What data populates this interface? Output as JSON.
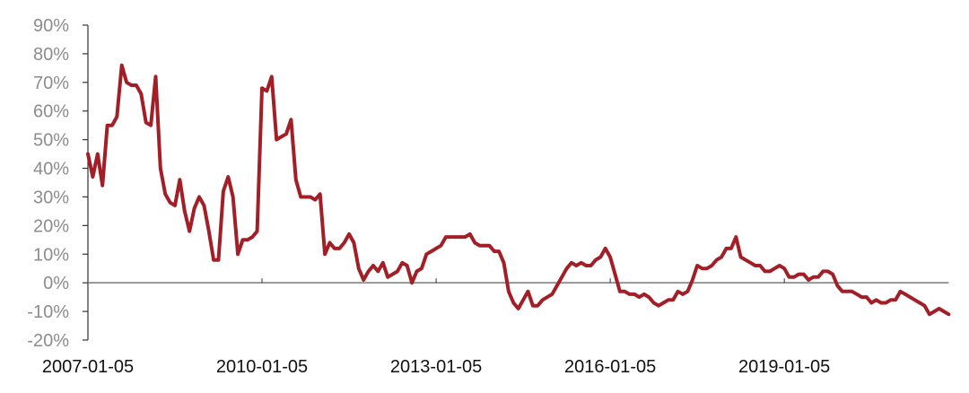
{
  "chart_data": {
    "type": "line",
    "title": "",
    "xlabel": "",
    "ylabel": "",
    "ylim": [
      -20,
      90
    ],
    "y_unit": "%",
    "y_ticks": [
      "90%",
      "80%",
      "70%",
      "60%",
      "50%",
      "40%",
      "30%",
      "20%",
      "10%",
      "0%",
      "-10%",
      "-20%"
    ],
    "x_ticks": [
      "2007-01-05",
      "2010-01-05",
      "2013-01-05",
      "2016-01-05",
      "2019-01-05"
    ],
    "grid": false,
    "legend": "none",
    "line_color": "#a31f28",
    "zero_line_color": "#7a7a7a",
    "x": [
      "2007-01",
      "2007-02",
      "2007-03",
      "2007-04",
      "2007-05",
      "2007-06",
      "2007-07",
      "2007-08",
      "2007-09",
      "2007-10",
      "2007-11",
      "2007-12",
      "2008-01",
      "2008-02",
      "2008-03",
      "2008-04",
      "2008-05",
      "2008-06",
      "2008-07",
      "2008-08",
      "2008-09",
      "2008-10",
      "2008-11",
      "2008-12",
      "2009-01",
      "2009-02",
      "2009-03",
      "2009-04",
      "2009-05",
      "2009-06",
      "2009-07",
      "2009-08",
      "2009-09",
      "2009-10",
      "2009-11",
      "2009-12",
      "2010-01",
      "2010-02",
      "2010-03",
      "2010-04",
      "2010-05",
      "2010-06",
      "2010-07",
      "2010-08",
      "2010-09",
      "2010-10",
      "2010-11",
      "2010-12",
      "2011-01",
      "2011-02",
      "2011-03",
      "2011-04",
      "2011-05",
      "2011-06",
      "2011-07",
      "2011-08",
      "2011-09",
      "2011-10",
      "2011-11",
      "2011-12",
      "2012-01",
      "2012-02",
      "2012-03",
      "2012-04",
      "2012-05",
      "2012-06",
      "2012-07",
      "2012-08",
      "2012-09",
      "2012-10",
      "2012-11",
      "2012-12",
      "2013-01",
      "2013-02",
      "2013-03",
      "2013-04",
      "2013-05",
      "2013-06",
      "2013-07",
      "2013-08",
      "2013-09",
      "2013-10",
      "2013-11",
      "2013-12",
      "2014-01",
      "2014-02",
      "2014-03",
      "2014-04",
      "2014-05",
      "2014-06",
      "2014-07",
      "2014-08",
      "2014-09",
      "2014-10",
      "2014-11",
      "2014-12",
      "2015-01",
      "2015-02",
      "2015-03",
      "2015-04",
      "2015-05",
      "2015-06",
      "2015-07",
      "2015-08",
      "2015-09",
      "2015-10",
      "2015-11",
      "2015-12",
      "2016-01",
      "2016-02",
      "2016-03",
      "2016-04",
      "2016-05",
      "2016-06",
      "2016-07",
      "2016-08",
      "2016-09",
      "2016-10",
      "2016-11",
      "2016-12",
      "2017-01",
      "2017-02",
      "2017-03",
      "2017-04",
      "2017-05",
      "2017-06",
      "2017-07",
      "2017-08",
      "2017-09",
      "2017-10",
      "2017-11",
      "2017-12",
      "2018-01",
      "2018-02",
      "2018-03",
      "2018-04",
      "2018-05",
      "2018-06",
      "2018-07",
      "2018-08",
      "2018-09",
      "2018-10",
      "2018-11",
      "2018-12",
      "2019-01",
      "2019-02",
      "2019-03",
      "2019-04",
      "2019-05",
      "2019-06",
      "2019-07",
      "2019-08",
      "2019-09",
      "2019-10",
      "2019-11",
      "2019-12",
      "2020-01",
      "2020-02",
      "2020-03",
      "2020-04",
      "2020-05",
      "2020-06",
      "2020-07",
      "2020-08",
      "2020-09",
      "2020-10",
      "2020-11",
      "2020-12",
      "2021-01",
      "2021-02",
      "2021-03",
      "2021-04",
      "2021-05",
      "2021-06",
      "2021-07",
      "2021-08",
      "2021-09",
      "2021-10",
      "2021-11"
    ],
    "values": [
      45,
      37,
      45,
      34,
      55,
      55,
      58,
      76,
      70,
      69,
      69,
      66,
      56,
      55,
      72,
      40,
      31,
      28,
      27,
      36,
      25,
      18,
      26,
      30,
      27,
      18,
      8,
      8,
      32,
      37,
      30,
      10,
      15,
      15,
      16,
      18,
      68,
      67,
      72,
      50,
      51,
      52,
      57,
      36,
      30,
      30,
      30,
      29,
      31,
      10,
      14,
      12,
      12,
      14,
      17,
      14,
      5,
      1,
      4,
      6,
      4,
      7,
      2,
      3,
      4,
      7,
      6,
      0,
      4,
      5,
      10,
      11,
      12,
      13,
      16,
      16,
      16,
      16,
      16,
      17,
      14,
      13,
      13,
      13,
      11,
      11,
      7,
      -3,
      -7,
      -9,
      -6,
      -3,
      -8,
      -8,
      -6,
      -5,
      -4,
      -1,
      2,
      5,
      7,
      6,
      7,
      6,
      6,
      8,
      9,
      12,
      9,
      3,
      -3,
      -3,
      -4,
      -4,
      -5,
      -4,
      -5,
      -7,
      -8,
      -7,
      -6,
      -6,
      -3,
      -4,
      -3,
      1,
      6,
      5,
      5,
      6,
      8,
      9,
      12,
      12,
      16,
      9,
      8,
      7,
      6,
      6,
      4,
      4,
      5,
      6,
      5,
      2,
      2,
      3,
      3,
      1,
      2,
      2,
      4,
      4,
      3,
      -1,
      -3,
      -3,
      -3,
      -4,
      -5,
      -5,
      -7,
      -6,
      -7,
      -7,
      -6,
      -6,
      -3,
      -4,
      -5,
      -6,
      -7,
      -8,
      -11,
      -10,
      -9,
      -10,
      -11
    ]
  }
}
